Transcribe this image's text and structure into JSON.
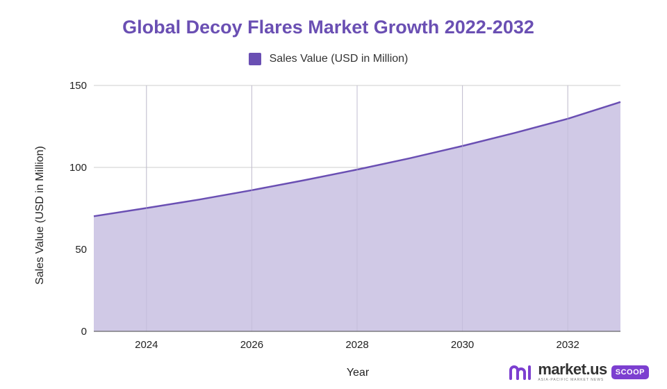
{
  "colors": {
    "title": "#6a4fb3",
    "series_line": "#6a4fb3",
    "series_fill": "#d0c9e6",
    "legend_swatch": "#6a4fb3",
    "grid": "#cccccc",
    "brand_badge": "#7c3fd0"
  },
  "chart_data": {
    "type": "area",
    "title": "Global Decoy Flares Market Growth 2022-2032",
    "xlabel": "Year",
    "ylabel": "Sales Value (USD in Million)",
    "xlim": [
      2023,
      2033
    ],
    "ylim": [
      0,
      150
    ],
    "xticks": [
      2024,
      2026,
      2028,
      2030,
      2032
    ],
    "xtick_labels": [
      "2024",
      "2026",
      "2028",
      "2030",
      "2032"
    ],
    "yticks": [
      0,
      50,
      100,
      150
    ],
    "ytick_labels": [
      "0",
      "50",
      "100",
      "150"
    ],
    "grid": true,
    "legend": {
      "position": "top-center",
      "entries": [
        "Sales Value (USD in Million)"
      ]
    },
    "series": [
      {
        "name": "Sales Value (USD in Million)",
        "x": [
          2023,
          2024,
          2025,
          2026,
          2027,
          2028,
          2029,
          2030,
          2031,
          2032,
          2033
        ],
        "y": [
          70.2,
          75.2,
          80.4,
          86.1,
          92.2,
          98.7,
          105.6,
          113.1,
          121.1,
          129.7,
          139.9
        ]
      }
    ]
  },
  "brand": {
    "icon": "market-us-logo-icon",
    "name": "market.us",
    "tagline": "ASIA-PACIFIC MARKET NEWS",
    "badge": "SCOOP"
  }
}
